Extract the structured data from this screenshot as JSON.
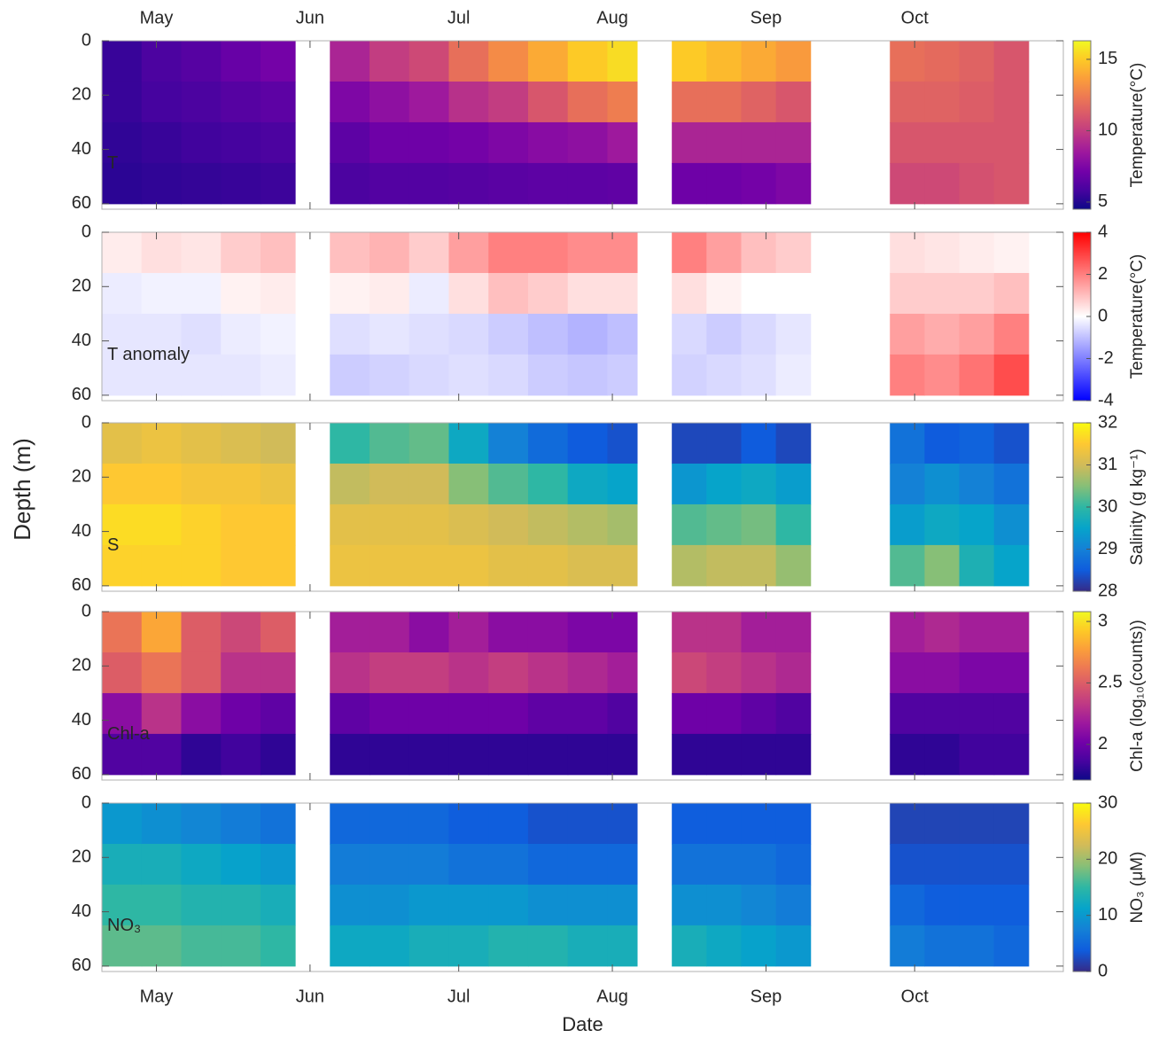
{
  "chart_data": [
    {
      "type": "heatmap",
      "label": "T",
      "colormap": "plasma",
      "y_reversed": true,
      "xlim": [
        110,
        304
      ],
      "xticks": [
        {
          "value": 121,
          "label": "May"
        },
        {
          "value": 152,
          "label": "Jun"
        },
        {
          "value": 182,
          "label": "Jul"
        },
        {
          "value": 213,
          "label": "Aug"
        },
        {
          "value": 244,
          "label": "Sep"
        },
        {
          "value": 274,
          "label": "Oct"
        }
      ],
      "xtick_side": "top",
      "ylim": [
        0,
        62
      ],
      "yticks": [
        0,
        20,
        40,
        60
      ],
      "x_bins": [
        110,
        118,
        126,
        134,
        142,
        149,
        156,
        164,
        172,
        180,
        188,
        196,
        204,
        212,
        218,
        225,
        232,
        239,
        246,
        253,
        269,
        276,
        283,
        290,
        297
      ],
      "y_bins": [
        0,
        15,
        30,
        45,
        60
      ],
      "values": [
        [
          5.5,
          5.5,
          5.3,
          5.2
        ],
        [
          6,
          5.8,
          5.5,
          5.3
        ],
        [
          6.3,
          6,
          5.7,
          5.4
        ],
        [
          6.8,
          6.3,
          5.8,
          5.5
        ],
        [
          7.2,
          6.5,
          6,
          5.6
        ],
        null,
        [
          9,
          7.5,
          6.5,
          6
        ],
        [
          10,
          8,
          7,
          6.2
        ],
        [
          10.5,
          8.5,
          7,
          6.2
        ],
        [
          12,
          9.5,
          7.2,
          6.3
        ],
        [
          13,
          10,
          7.5,
          6.4
        ],
        [
          14,
          11,
          7.8,
          6.5
        ],
        [
          15,
          12,
          8,
          6.5
        ],
        [
          15.5,
          12.5,
          8.5,
          6.6
        ],
        null,
        [
          15,
          12,
          9,
          7
        ],
        [
          14.5,
          12,
          9,
          7
        ],
        [
          14,
          11.5,
          9,
          7.2
        ],
        [
          13.5,
          11,
          9,
          7.5
        ],
        null,
        [
          12,
          11.5,
          11,
          10.5
        ],
        [
          11.8,
          11.5,
          11,
          10.5
        ],
        [
          11.5,
          11.3,
          11,
          10.8
        ],
        [
          11,
          11,
          11,
          11
        ]
      ],
      "colorbar": {
        "label": "Temperature(°C)",
        "clim": [
          4.5,
          16.3
        ],
        "ticks": [
          5,
          10,
          15
        ]
      }
    },
    {
      "type": "heatmap",
      "label": "T anomaly",
      "colormap": "bwr",
      "y_reversed": true,
      "xlim": [
        110,
        304
      ],
      "xticks": [
        121,
        152,
        182,
        213,
        244,
        274
      ],
      "ylim": [
        0,
        62
      ],
      "yticks": [
        0,
        20,
        40,
        60
      ],
      "x_bins": [
        110,
        118,
        126,
        134,
        142,
        149,
        156,
        164,
        172,
        180,
        188,
        196,
        204,
        212,
        218,
        225,
        232,
        239,
        246,
        253,
        269,
        276,
        283,
        290,
        297
      ],
      "y_bins": [
        0,
        15,
        30,
        45,
        60
      ],
      "values": [
        [
          0.3,
          -0.3,
          -0.4,
          -0.4
        ],
        [
          0.5,
          -0.2,
          -0.4,
          -0.4
        ],
        [
          0.4,
          -0.2,
          -0.5,
          -0.4
        ],
        [
          0.8,
          0.2,
          -0.3,
          -0.4
        ],
        [
          1,
          0.3,
          -0.2,
          -0.3
        ],
        null,
        [
          1,
          0.2,
          -0.5,
          -0.8
        ],
        [
          1.2,
          0.3,
          -0.4,
          -0.7
        ],
        [
          0.8,
          -0.3,
          -0.5,
          -0.6
        ],
        [
          1.5,
          0.5,
          -0.6,
          -0.5
        ],
        [
          2,
          1,
          -0.8,
          -0.6
        ],
        [
          2,
          0.8,
          -1,
          -0.8
        ],
        [
          1.8,
          0.5,
          -1.2,
          -0.9
        ],
        [
          1.8,
          0.5,
          -1,
          -0.8
        ],
        null,
        [
          2,
          0.5,
          -0.6,
          -0.7
        ],
        [
          1.5,
          0.2,
          -0.8,
          -0.6
        ],
        [
          1,
          0,
          -0.6,
          -0.5
        ],
        [
          0.8,
          0,
          -0.4,
          -0.3
        ],
        null,
        [
          0.5,
          0.8,
          1.5,
          2
        ],
        [
          0.4,
          0.8,
          1.3,
          1.8
        ],
        [
          0.3,
          0.8,
          1.5,
          2.2
        ],
        [
          0.2,
          1,
          2,
          2.8
        ]
      ],
      "colorbar": {
        "label": "Temperature(°C)",
        "clim": [
          -4,
          4
        ],
        "ticks": [
          -4,
          -2,
          0,
          2,
          4
        ]
      }
    },
    {
      "type": "heatmap",
      "label": "S",
      "colormap": "parula",
      "y_reversed": true,
      "ylabel": "Depth (m)",
      "xlim": [
        110,
        304
      ],
      "xticks": [
        121,
        152,
        182,
        213,
        244,
        274
      ],
      "ylim": [
        0,
        62
      ],
      "yticks": [
        0,
        20,
        40,
        60
      ],
      "x_bins": [
        110,
        118,
        126,
        134,
        142,
        149,
        156,
        164,
        172,
        180,
        188,
        196,
        204,
        212,
        218,
        225,
        232,
        239,
        246,
        253,
        269,
        276,
        283,
        290,
        297
      ],
      "y_bins": [
        0,
        15,
        30,
        45,
        60
      ],
      "values": [
        [
          31.2,
          31.5,
          31.7,
          31.6
        ],
        [
          31.3,
          31.5,
          31.7,
          31.6
        ],
        [
          31.2,
          31.4,
          31.6,
          31.6
        ],
        [
          31.1,
          31.4,
          31.5,
          31.5
        ],
        [
          31,
          31.3,
          31.5,
          31.5
        ],
        null,
        [
          30,
          30.9,
          31.2,
          31.3
        ],
        [
          30.2,
          31,
          31.2,
          31.3
        ],
        [
          30.3,
          31,
          31.2,
          31.3
        ],
        [
          29.6,
          30.5,
          31.1,
          31.3
        ],
        [
          29,
          30.2,
          31,
          31.2
        ],
        [
          28.7,
          30,
          30.9,
          31.2
        ],
        [
          28.5,
          29.6,
          30.8,
          31.1
        ],
        [
          28.4,
          29.5,
          30.7,
          31.1
        ],
        null,
        [
          28.3,
          29.3,
          30.2,
          30.8
        ],
        [
          28.3,
          29.5,
          30.3,
          30.9
        ],
        [
          28.5,
          29.6,
          30.4,
          30.9
        ],
        [
          28.3,
          29.4,
          30,
          30.6
        ],
        null,
        [
          28.8,
          29,
          29.4,
          30.2
        ],
        [
          28.5,
          29.2,
          29.6,
          30.5
        ],
        [
          28.6,
          29,
          29.5,
          29.8
        ],
        [
          28.4,
          28.8,
          29.2,
          29.5
        ]
      ],
      "colorbar": {
        "label": "Salinity (g kg⁻¹)",
        "clim": [
          28,
          32
        ],
        "ticks": [
          28,
          29,
          30,
          31,
          32
        ]
      }
    },
    {
      "type": "heatmap",
      "label": "Chl-a",
      "colormap": "plasma",
      "y_reversed": true,
      "xlim": [
        110,
        304
      ],
      "xticks": [
        121,
        152,
        182,
        213,
        244,
        274
      ],
      "ylim": [
        0,
        62
      ],
      "yticks": [
        0,
        20,
        40,
        60
      ],
      "x_bins": [
        110,
        118,
        126,
        134,
        142,
        149,
        156,
        164,
        172,
        180,
        188,
        196,
        204,
        212,
        218,
        225,
        232,
        239,
        246,
        253,
        269,
        276,
        283,
        290,
        297
      ],
      "y_bins": [
        0,
        15,
        30,
        45,
        60
      ],
      "values": [
        [
          2.6,
          2.5,
          2.1,
          1.9
        ],
        [
          2.8,
          2.6,
          2.3,
          1.9
        ],
        [
          2.5,
          2.5,
          2.1,
          1.8
        ],
        [
          2.4,
          2.3,
          2,
          1.85
        ],
        [
          2.5,
          2.3,
          1.95,
          1.8
        ],
        null,
        [
          2.2,
          2.3,
          1.95,
          1.8
        ],
        [
          2.2,
          2.35,
          2,
          1.8
        ],
        [
          2.1,
          2.35,
          2,
          1.8
        ],
        [
          2.2,
          2.3,
          2,
          1.8
        ],
        [
          2.1,
          2.35,
          2,
          1.8
        ],
        [
          2.1,
          2.3,
          1.95,
          1.8
        ],
        [
          2.05,
          2.25,
          1.95,
          1.8
        ],
        [
          2.05,
          2.2,
          1.9,
          1.8
        ],
        null,
        [
          2.3,
          2.4,
          2,
          1.8
        ],
        [
          2.3,
          2.35,
          2,
          1.8
        ],
        [
          2.2,
          2.3,
          1.95,
          1.8
        ],
        [
          2.2,
          2.25,
          1.9,
          1.8
        ],
        null,
        [
          2.2,
          2.1,
          1.9,
          1.8
        ],
        [
          2.25,
          2.1,
          1.9,
          1.8
        ],
        [
          2.2,
          2.05,
          1.9,
          1.85
        ],
        [
          2.2,
          2.05,
          1.9,
          1.85
        ]
      ],
      "colorbar": {
        "label": "Chl-a (log₁₀(counts))",
        "clim": [
          1.71,
          3.08
        ],
        "ticks": [
          2,
          2.5,
          3
        ]
      }
    },
    {
      "type": "heatmap",
      "label": "NO₃",
      "colormap": "parula",
      "y_reversed": true,
      "xlabel": "Date",
      "xlim": [
        110,
        304
      ],
      "xticks": [
        {
          "value": 121,
          "label": "May"
        },
        {
          "value": 152,
          "label": "Jun"
        },
        {
          "value": 182,
          "label": "Jul"
        },
        {
          "value": 213,
          "label": "Aug"
        },
        {
          "value": 244,
          "label": "Sep"
        },
        {
          "value": 274,
          "label": "Oct"
        }
      ],
      "xtick_side": "bottom",
      "ylim": [
        0,
        62
      ],
      "yticks": [
        0,
        20,
        40,
        60
      ],
      "x_bins": [
        110,
        118,
        126,
        134,
        142,
        149,
        156,
        164,
        172,
        180,
        188,
        196,
        204,
        212,
        218,
        225,
        232,
        239,
        246,
        253,
        269,
        276,
        283,
        290,
        297
      ],
      "y_bins": [
        0,
        15,
        30,
        45,
        60
      ],
      "values": [
        [
          10,
          13,
          15,
          17
        ],
        [
          9,
          13,
          15,
          17
        ],
        [
          8,
          12,
          14,
          16
        ],
        [
          7,
          11,
          14,
          16
        ],
        [
          6,
          10,
          13,
          15
        ],
        null,
        [
          5,
          7,
          9,
          12
        ],
        [
          5,
          7,
          9,
          12
        ],
        [
          5,
          7,
          10,
          13
        ],
        [
          4,
          6,
          10,
          13
        ],
        [
          4,
          6,
          10,
          14
        ],
        [
          3,
          5,
          9,
          14
        ],
        [
          3,
          5,
          9,
          13
        ],
        [
          3,
          5,
          9,
          13
        ],
        null,
        [
          4,
          6,
          9,
          13
        ],
        [
          4,
          6,
          9,
          12
        ],
        [
          4,
          6,
          8,
          11
        ],
        [
          4,
          5,
          7,
          10
        ],
        null,
        [
          2,
          3,
          5,
          7
        ],
        [
          2,
          3,
          4,
          6
        ],
        [
          2,
          3,
          4,
          6
        ],
        [
          2,
          3,
          4,
          5
        ]
      ],
      "colorbar": {
        "label": "NO₃ (μM)",
        "clim": [
          0,
          30
        ],
        "ticks": [
          0,
          10,
          20,
          30
        ]
      }
    }
  ]
}
